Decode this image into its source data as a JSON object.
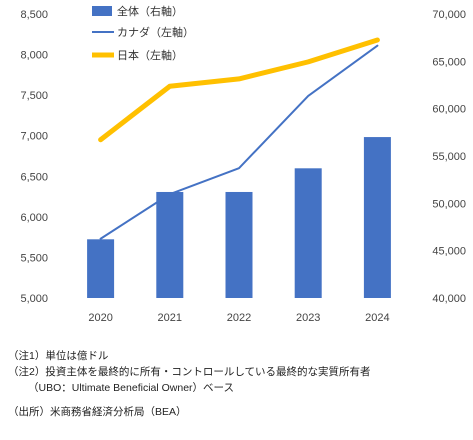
{
  "chart_data": {
    "type": "bar+line",
    "categories": [
      "2020",
      "2021",
      "2022",
      "2023",
      "2024"
    ],
    "left_axis": {
      "min": 5000,
      "max": 8500,
      "step": 500,
      "ticks": [
        "5,000",
        "5,500",
        "6,000",
        "6,500",
        "7,000",
        "7,500",
        "8,000",
        "8,500"
      ]
    },
    "right_axis": {
      "min": 40000,
      "max": 70000,
      "step": 5000,
      "ticks": [
        "40,000",
        "45,000",
        "50,000",
        "55,000",
        "60,000",
        "65,000",
        "70,000"
      ]
    },
    "series": [
      {
        "name": "全体（右軸）",
        "type": "bar",
        "axis": "right",
        "color": "#4472C4",
        "values": [
          46200,
          51200,
          51200,
          53700,
          57000
        ]
      },
      {
        "name": "カナダ（左軸）",
        "type": "line",
        "axis": "left",
        "color": "#4472C4",
        "values": [
          5730,
          6280,
          6600,
          7490,
          8110
        ]
      },
      {
        "name": "日本（左軸）",
        "type": "line",
        "axis": "left",
        "color": "#FFC000",
        "values": [
          6950,
          7610,
          7700,
          7910,
          8180
        ]
      }
    ],
    "grid": false,
    "legend_position": "top-left"
  },
  "notes": {
    "note1": "（注1）単位は億ドル",
    "note2": "（注2）投資主体を最終的に所有・コントロールしている最終的な実質所有者",
    "note2b": "（UBO：Ultimate Beneficial Owner）ベース",
    "source": "（出所）米商務省経済分析局（BEA）"
  }
}
